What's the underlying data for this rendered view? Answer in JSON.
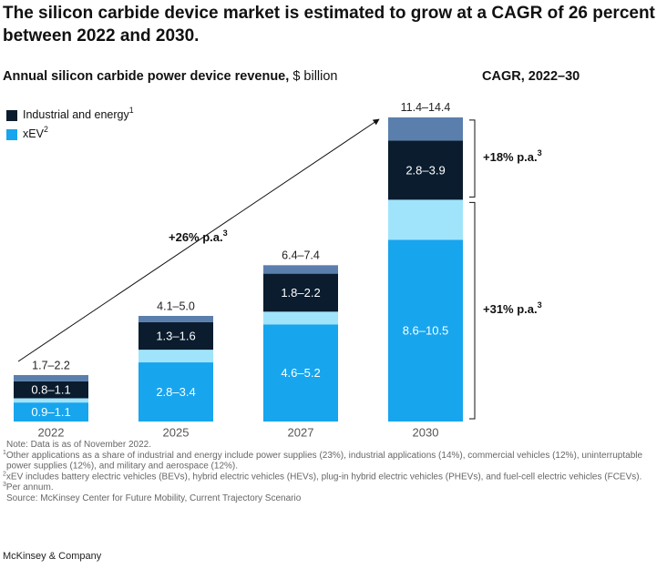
{
  "chart_data": {
    "type": "stacked-range-bar",
    "title_lines": [
      "The silicon carbide device market is estimated to grow at a CAGR of 26 percent",
      "between 2022 and 2030."
    ],
    "subtitle_bold": "Annual silicon carbide power device revenue,",
    "subtitle_unit": "$ billion",
    "cagr_title": "CAGR, 2022–30",
    "categories": [
      "2022",
      "2025",
      "2027",
      "2030"
    ],
    "series": [
      {
        "name": "Industrial and energy",
        "marker": "1",
        "color": "#0a1c2e",
        "range_color": "#5a7fad",
        "low": [
          0.8,
          1.3,
          1.8,
          2.8
        ],
        "high": [
          1.1,
          1.6,
          2.2,
          3.9
        ],
        "value_labels": [
          "0.8–1.1",
          "1.3–1.6",
          "1.8–2.2",
          "2.8–3.9"
        ],
        "cagr": "+18% p.a.",
        "cagr_marker": "3"
      },
      {
        "name": "xEV",
        "marker": "2",
        "color": "#17a5ee",
        "range_color": "#a0e4fb",
        "low": [
          0.9,
          2.8,
          4.6,
          8.6
        ],
        "high": [
          1.1,
          3.4,
          5.2,
          10.5
        ],
        "value_labels": [
          "0.9–1.1",
          "2.8–3.4",
          "4.6–5.2",
          "8.6–10.5"
        ],
        "cagr": "+31% p.a.",
        "cagr_marker": "3"
      }
    ],
    "total_labels": [
      "1.7–2.2",
      "4.1–5.0",
      "6.4–7.4",
      "11.4–14.4"
    ],
    "overall_cagr": {
      "text": "+26% p.a.",
      "marker": "3"
    },
    "footnotes": [
      {
        "marker": "",
        "lines": [
          "Note: Data is as of November 2022."
        ]
      },
      {
        "marker": "1",
        "lines": [
          "Other applications as a share of industrial and energy include power supplies (23%), industrial applications (14%), commercial vehicles (12%), uninterruptable",
          "power supplies (12%), and military and aerospace (12%)."
        ]
      },
      {
        "marker": "2",
        "lines": [
          "xEV includes battery electric vehicles (BEVs), hybrid electric vehicles (HEVs), plug-in hybrid electric vehicles (PHEVs), and fuel-cell electric vehicles (FCEVs)."
        ]
      },
      {
        "marker": "3",
        "lines": [
          "Per annum."
        ]
      },
      {
        "marker": "",
        "lines": [
          "Source: McKinsey Center for Future Mobility, Current Trajectory Scenario"
        ]
      }
    ],
    "brand": "McKinsey & Company"
  }
}
